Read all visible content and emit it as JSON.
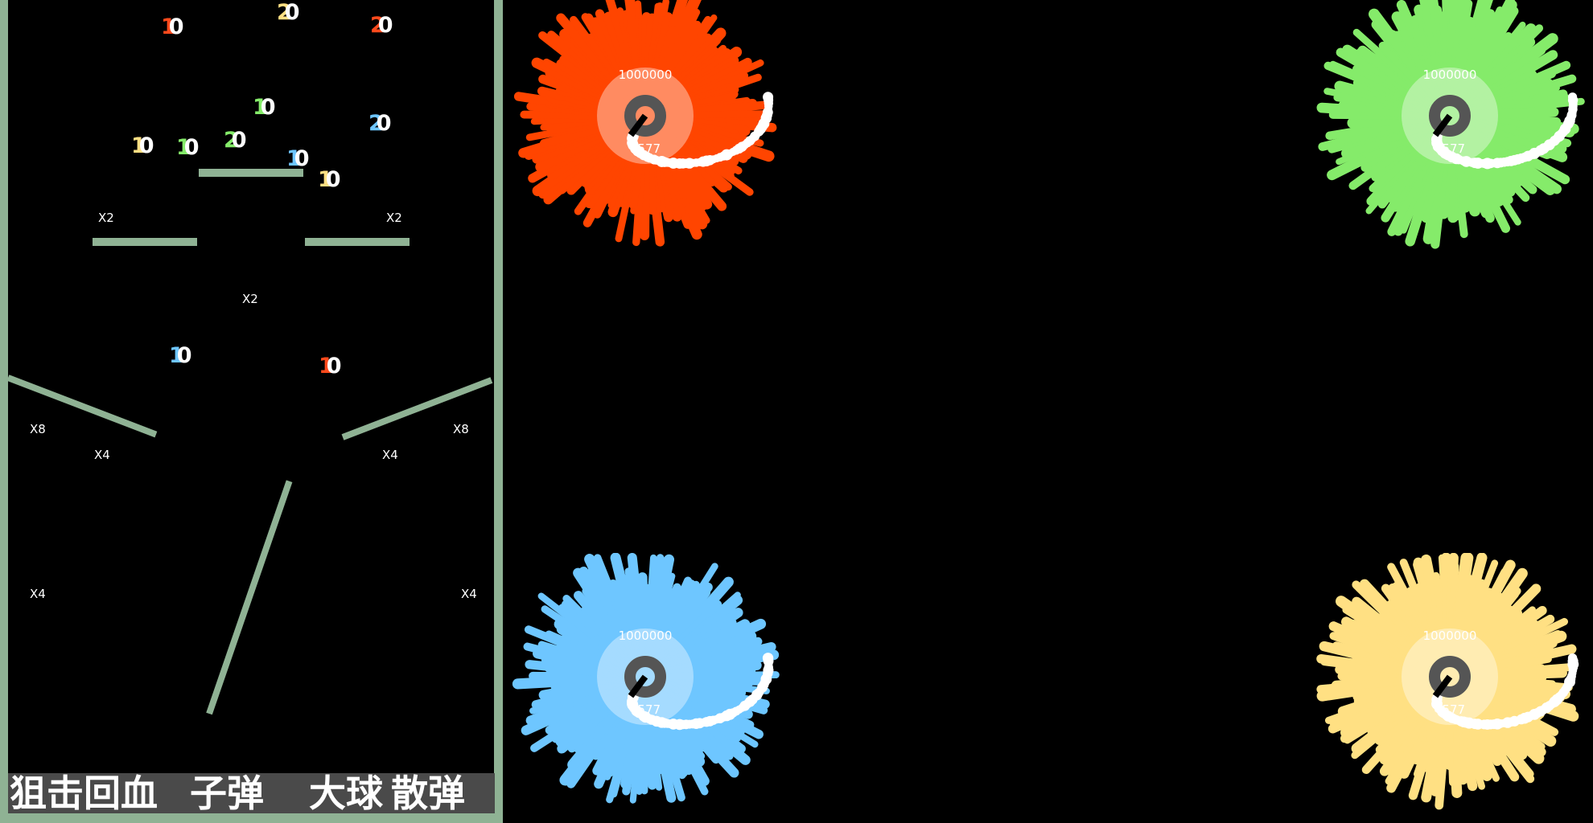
{
  "board": {
    "pegs": [
      {
        "d1": "1",
        "d2": "0",
        "color": "#ff4a1c"
      },
      {
        "d1": "2",
        "d2": "0",
        "color": "#ffe083"
      },
      {
        "d1": "2",
        "d2": "0",
        "color": "#ff4a1c"
      },
      {
        "d1": "1",
        "d2": "0",
        "color": "#85eb6a"
      },
      {
        "d1": "1",
        "d2": "0",
        "color": "#ffe083"
      },
      {
        "d1": "1",
        "d2": "0",
        "color": "#85eb6a"
      },
      {
        "d1": "2",
        "d2": "0",
        "color": "#85eb6a"
      },
      {
        "d1": "1",
        "d2": "0",
        "color": "#6ec6ff"
      },
      {
        "d1": "2",
        "d2": "0",
        "color": "#6ec6ff"
      },
      {
        "d1": "1",
        "d2": "0",
        "color": "#ffe083"
      },
      {
        "d1": "1",
        "d2": "0",
        "color": "#6ec6ff"
      },
      {
        "d1": "1",
        "d2": "0",
        "color": "#ff4a1c"
      }
    ],
    "multipliers": [
      "X2",
      "X2",
      "X2",
      "X8",
      "X8",
      "X4",
      "X4",
      "X4",
      "X4"
    ]
  },
  "powerups": [
    "狙击回血",
    "子弹",
    "大球",
    "散弹"
  ],
  "bosses": [
    {
      "name": "red-boss",
      "color": "#ff4500",
      "hp": "1000000",
      "score": "4577"
    },
    {
      "name": "green-boss",
      "color": "#85eb6a",
      "hp": "1000000",
      "score": "4577"
    },
    {
      "name": "blue-boss",
      "color": "#6ec6ff",
      "hp": "1000000",
      "score": "4577"
    },
    {
      "name": "yellow-boss",
      "color": "#ffe083",
      "hp": "1000000",
      "score": "4577"
    }
  ],
  "colors": {
    "wall": "#8fb294",
    "powerbar": "#4a4a4a",
    "ring": "#555555"
  }
}
